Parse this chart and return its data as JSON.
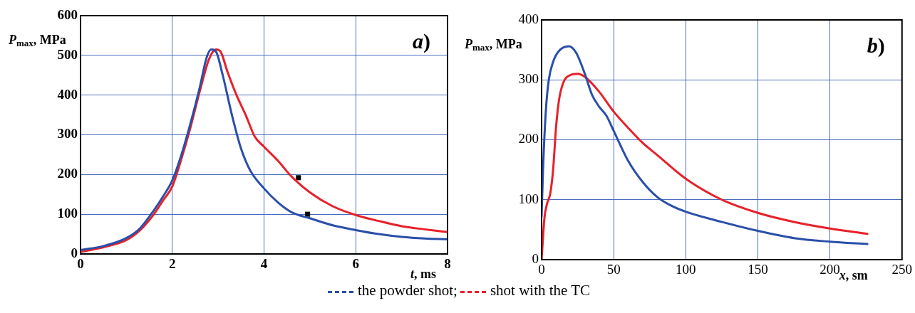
{
  "chart_data": [
    {
      "type": "line",
      "xlabel": "t, ms",
      "ylabel": "P$_{max}$, MPa",
      "annotations": [
        "a)"
      ],
      "xlim": [
        0,
        8
      ],
      "xticks": [
        0,
        2,
        4,
        6,
        8
      ],
      "ylim": [
        0,
        600
      ],
      "yticks": [
        0,
        100,
        200,
        300,
        400,
        500,
        600
      ],
      "grid": true,
      "legend": "bottom",
      "marker": "none",
      "series": [
        {
          "name": "the powder shot;",
          "color": "#2a4fa8",
          "x": [
            0,
            0.5,
            1,
            1.3,
            1.6,
            1.8,
            2,
            2.2,
            2.4,
            2.6,
            2.75,
            2.85,
            2.95,
            3.1,
            3.3,
            3.5,
            3.7,
            4,
            4.3,
            4.6,
            5,
            5.5,
            6,
            6.5,
            7,
            7.5,
            8
          ],
          "values": [
            10,
            20,
            40,
            65,
            110,
            145,
            185,
            250,
            330,
            420,
            495,
            515,
            510,
            450,
            350,
            265,
            210,
            165,
            130,
            105,
            90,
            72,
            60,
            50,
            43,
            39,
            37
          ]
        },
        {
          "name": "shot with the TC",
          "color": "#e8202a",
          "x": [
            0,
            0.5,
            1,
            1.3,
            1.6,
            1.8,
            2,
            2.2,
            2.4,
            2.6,
            2.8,
            2.95,
            3.05,
            3.2,
            3.4,
            3.6,
            3.8,
            4,
            4.3,
            4.6,
            5,
            5.5,
            6,
            6.5,
            7,
            7.5,
            8
          ],
          "values": [
            5,
            17,
            35,
            60,
            100,
            135,
            170,
            240,
            320,
            410,
            490,
            515,
            510,
            460,
            400,
            350,
            295,
            270,
            235,
            195,
            155,
            120,
            98,
            83,
            70,
            62,
            55
          ]
        },
        {
          "type": "scatter",
          "marker": "square",
          "color": "#000000",
          "x": [
            4.75,
            4.95
          ],
          "values": [
            192,
            100
          ]
        }
      ]
    },
    {
      "type": "line",
      "xlabel": "x, sm",
      "ylabel": "P$_{max}$, MPa",
      "annotations": [
        "b)"
      ],
      "xlim": [
        0,
        250
      ],
      "xticks": [
        0,
        50,
        100,
        150,
        200,
        250
      ],
      "ylim": [
        0,
        400
      ],
      "yticks": [
        0,
        100,
        200,
        300,
        400
      ],
      "grid": true,
      "marker": "none",
      "series": [
        {
          "color": "#2a4fa8",
          "x": [
            0,
            1,
            3,
            5,
            8,
            12,
            19,
            24,
            30,
            35,
            40,
            45,
            50,
            60,
            70,
            80,
            90,
            100,
            125,
            150,
            175,
            200,
            226
          ],
          "values": [
            72,
            150,
            250,
            300,
            330,
            348,
            356,
            345,
            310,
            275,
            255,
            240,
            215,
            165,
            130,
            105,
            90,
            80,
            63,
            48,
            36,
            30,
            26
          ]
        },
        {
          "color": "#e8202a",
          "x": [
            0,
            2,
            4,
            6,
            8,
            10,
            12,
            15,
            20,
            25,
            30,
            40,
            50,
            60,
            70,
            80,
            100,
            125,
            150,
            175,
            200,
            226
          ],
          "values": [
            0,
            70,
            95,
            110,
            150,
            220,
            265,
            295,
            308,
            310,
            305,
            280,
            247,
            220,
            195,
            175,
            135,
            100,
            78,
            63,
            52,
            43
          ]
        }
      ]
    }
  ]
}
